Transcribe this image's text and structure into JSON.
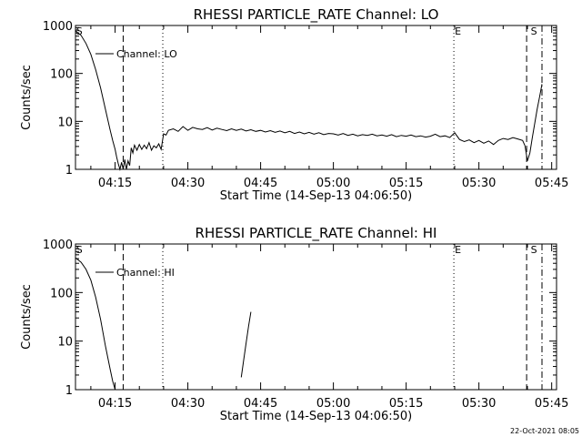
{
  "chart_data": [
    {
      "type": "line",
      "title": "RHESSI PARTICLE_RATE Channel: LO",
      "xlabel": "Start Time (14-Sep-13 04:06:50)",
      "ylabel": "Counts/sec",
      "yscale": "log",
      "ylim": [
        1,
        1000
      ],
      "ytick_labels": [
        "1",
        "10",
        "100",
        "1000"
      ],
      "xlim": [
        "04:06:50",
        "05:46:00"
      ],
      "xtick_labels": [
        "04:15",
        "04:30",
        "04:45",
        "05:00",
        "05:15",
        "05:30",
        "05:45"
      ],
      "legend_label": "Channel: LO",
      "legend_position": "top-left",
      "event_markers": [
        {
          "label": "S",
          "time": "04:07:10"
        },
        {
          "label": "E",
          "time": "05:24:50"
        },
        {
          "label": "S",
          "time": "05:40:30"
        }
      ],
      "vertical_lines": [
        {
          "time": "04:16:40",
          "style": "dashed"
        },
        {
          "time": "04:24:50",
          "style": "dotted"
        },
        {
          "time": "05:24:50",
          "style": "dotted"
        },
        {
          "time": "05:39:50",
          "style": "dashed"
        },
        {
          "time": "05:43:00",
          "style": "dash-dot"
        }
      ],
      "series": [
        {
          "x": [
            "04:06:50",
            "04:08:00",
            "04:09:00",
            "04:10:00",
            "04:11:00",
            "04:12:00",
            "04:13:00",
            "04:14:00",
            "04:14:30",
            "04:15:00",
            "04:15:20",
            "04:15:40",
            "04:16:00",
            "04:16:20",
            "04:16:40",
            "04:17:00",
            "04:17:20",
            "04:17:40",
            "04:18:00",
            "04:18:20",
            "04:18:40",
            "04:19:00",
            "04:19:30",
            "04:20:00",
            "04:20:30",
            "04:21:00",
            "04:21:30",
            "04:22:00",
            "04:22:30",
            "04:23:00",
            "04:23:30",
            "04:24:00",
            "04:24:30",
            "04:25:00",
            "04:25:30",
            "04:26:00",
            "04:27:00",
            "04:28:00",
            "04:29:00",
            "04:30:00",
            "04:31:00",
            "04:32:00",
            "04:33:00",
            "04:34:00",
            "04:35:00",
            "04:36:00",
            "04:37:00",
            "04:38:00",
            "04:39:00",
            "04:40:00",
            "04:41:00",
            "04:42:00",
            "04:43:00",
            "04:44:00",
            "04:45:00",
            "04:46:00",
            "04:47:00",
            "04:48:00",
            "04:49:00",
            "04:50:00",
            "04:51:00",
            "04:52:00",
            "04:53:00",
            "04:54:00",
            "04:55:00",
            "04:56:00",
            "04:57:00",
            "04:58:00",
            "04:59:00",
            "05:00:00",
            "05:01:00",
            "05:02:00",
            "05:03:00",
            "05:04:00",
            "05:05:00",
            "05:06:00",
            "05:07:00",
            "05:08:00",
            "05:09:00",
            "05:10:00",
            "05:11:00",
            "05:12:00",
            "05:13:00",
            "05:14:00",
            "05:15:00",
            "05:16:00",
            "05:17:00",
            "05:18:00",
            "05:19:00",
            "05:20:00",
            "05:21:00",
            "05:22:00",
            "05:23:00",
            "05:24:00",
            "05:25:00",
            "05:26:00",
            "05:27:00",
            "05:28:00",
            "05:29:00",
            "05:30:00",
            "05:31:00",
            "05:32:00",
            "05:33:00",
            "05:34:00",
            "05:35:00",
            "05:36:00",
            "05:37:00",
            "05:38:00",
            "05:39:00",
            "05:39:30",
            "05:40:00",
            "05:40:30",
            "05:41:00",
            "05:41:30",
            "05:42:00",
            "05:42:30",
            "05:43:00"
          ],
          "y": [
            780,
            620,
            420,
            250,
            120,
            50,
            18,
            6.5,
            4,
            2.6,
            1.8,
            1.3,
            1.0,
            1.4,
            1.0,
            1.6,
            1.0,
            1.5,
            1.2,
            2.8,
            2.2,
            3.2,
            2.5,
            3.3,
            2.6,
            3.2,
            2.7,
            3.6,
            2.5,
            3.1,
            2.8,
            3.4,
            2.6,
            5.5,
            5.2,
            6.5,
            7.0,
            6.2,
            7.8,
            6.5,
            7.5,
            7.0,
            6.8,
            7.4,
            6.6,
            7.2,
            6.8,
            6.4,
            7.0,
            6.5,
            6.9,
            6.3,
            6.7,
            6.2,
            6.5,
            6.0,
            6.4,
            5.9,
            6.3,
            5.8,
            6.2,
            5.6,
            6.0,
            5.5,
            5.9,
            5.4,
            5.8,
            5.3,
            5.6,
            5.5,
            5.2,
            5.6,
            5.1,
            5.4,
            5.0,
            5.3,
            5.1,
            5.4,
            5.0,
            5.2,
            4.9,
            5.3,
            4.8,
            5.1,
            4.9,
            5.2,
            4.8,
            5.0,
            4.7,
            4.9,
            5.4,
            4.8,
            5.0,
            4.6,
            5.8,
            4.2,
            3.8,
            4.1,
            3.6,
            4.0,
            3.5,
            3.9,
            3.3,
            4.0,
            4.4,
            4.2,
            4.6,
            4.3,
            4.0,
            3.1,
            1.5,
            2.2,
            4.5,
            9.0,
            18,
            32,
            60
          ]
        }
      ]
    },
    {
      "type": "line",
      "title": "RHESSI PARTICLE_RATE Channel: HI",
      "xlabel": "Start Time (14-Sep-13 04:06:50)",
      "ylabel": "Counts/sec",
      "yscale": "log",
      "ylim": [
        1,
        1000
      ],
      "ytick_labels": [
        "1",
        "10",
        "100",
        "1000"
      ],
      "xlim": [
        "04:06:50",
        "05:46:00"
      ],
      "xtick_labels": [
        "04:15",
        "04:30",
        "04:45",
        "05:00",
        "05:15",
        "05:30",
        "05:45"
      ],
      "legend_label": "Channel: HI",
      "legend_position": "top-left",
      "event_markers": [
        {
          "label": "S",
          "time": "04:07:10"
        },
        {
          "label": "E",
          "time": "05:24:50"
        },
        {
          "label": "S",
          "time": "05:40:30"
        }
      ],
      "vertical_lines": [
        {
          "time": "04:16:40",
          "style": "dashed"
        },
        {
          "time": "04:24:50",
          "style": "dotted"
        },
        {
          "time": "05:24:50",
          "style": "dotted"
        },
        {
          "time": "05:39:50",
          "style": "dashed"
        },
        {
          "time": "05:43:00",
          "style": "dash-dot"
        }
      ],
      "series": [
        {
          "x": [
            "04:06:50",
            "04:08:00",
            "04:09:00",
            "04:10:00",
            "04:11:00",
            "04:12:00",
            "04:13:00",
            "04:14:00",
            "04:14:30",
            "04:15:00",
            "04:40:00",
            "04:41:00",
            "04:41:30",
            "04:42:00",
            "04:42:30",
            "04:43:00"
          ],
          "y": [
            520,
            420,
            300,
            180,
            80,
            28,
            8,
            2.6,
            1.5,
            1.0,
            0,
            1.8,
            4.0,
            9.0,
            20,
            40
          ]
        }
      ]
    }
  ],
  "footer": {
    "date_stamp": "22-Oct-2021 08:05"
  }
}
